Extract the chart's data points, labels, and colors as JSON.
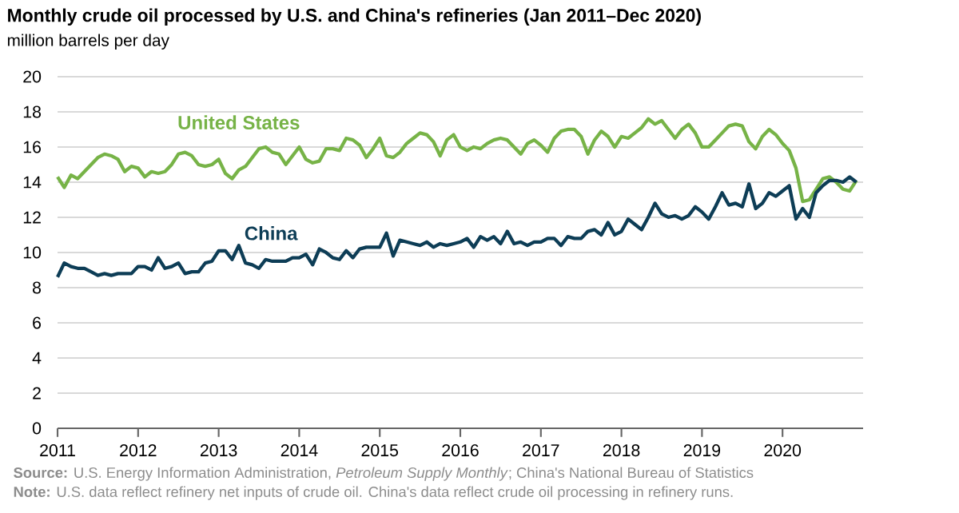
{
  "chart_data": {
    "type": "line",
    "title": "Monthly crude oil processed by U.S. and China's refineries (Jan 2011–Dec 2020)",
    "ylabel": "million barrels per day",
    "x": [
      "2011-01",
      "2011-02",
      "2011-03",
      "2011-04",
      "2011-05",
      "2011-06",
      "2011-07",
      "2011-08",
      "2011-09",
      "2011-10",
      "2011-11",
      "2011-12",
      "2012-01",
      "2012-02",
      "2012-03",
      "2012-04",
      "2012-05",
      "2012-06",
      "2012-07",
      "2012-08",
      "2012-09",
      "2012-10",
      "2012-11",
      "2012-12",
      "2013-01",
      "2013-02",
      "2013-03",
      "2013-04",
      "2013-05",
      "2013-06",
      "2013-07",
      "2013-08",
      "2013-09",
      "2013-10",
      "2013-11",
      "2013-12",
      "2014-01",
      "2014-02",
      "2014-03",
      "2014-04",
      "2014-05",
      "2014-06",
      "2014-07",
      "2014-08",
      "2014-09",
      "2014-10",
      "2014-11",
      "2014-12",
      "2015-01",
      "2015-02",
      "2015-03",
      "2015-04",
      "2015-05",
      "2015-06",
      "2015-07",
      "2015-08",
      "2015-09",
      "2015-10",
      "2015-11",
      "2015-12",
      "2016-01",
      "2016-02",
      "2016-03",
      "2016-04",
      "2016-05",
      "2016-06",
      "2016-07",
      "2016-08",
      "2016-09",
      "2016-10",
      "2016-11",
      "2016-12",
      "2017-01",
      "2017-02",
      "2017-03",
      "2017-04",
      "2017-05",
      "2017-06",
      "2017-07",
      "2017-08",
      "2017-09",
      "2017-10",
      "2017-11",
      "2017-12",
      "2018-01",
      "2018-02",
      "2018-03",
      "2018-04",
      "2018-05",
      "2018-06",
      "2018-07",
      "2018-08",
      "2018-09",
      "2018-10",
      "2018-11",
      "2018-12",
      "2019-01",
      "2019-02",
      "2019-03",
      "2019-04",
      "2019-05",
      "2019-06",
      "2019-07",
      "2019-08",
      "2019-09",
      "2019-10",
      "2019-11",
      "2019-12",
      "2020-01",
      "2020-02",
      "2020-03",
      "2020-04",
      "2020-05",
      "2020-06",
      "2020-07",
      "2020-08",
      "2020-09",
      "2020-10",
      "2020-11",
      "2020-12"
    ],
    "series": [
      {
        "name": "United States",
        "color": "#77b347",
        "values": [
          14.3,
          13.7,
          14.4,
          14.2,
          14.6,
          15.0,
          15.4,
          15.6,
          15.5,
          15.3,
          14.6,
          14.9,
          14.8,
          14.3,
          14.6,
          14.5,
          14.6,
          15.0,
          15.6,
          15.7,
          15.5,
          15.0,
          14.9,
          15.0,
          15.3,
          14.5,
          14.2,
          14.7,
          14.9,
          15.4,
          15.9,
          16.0,
          15.7,
          15.6,
          15.0,
          15.5,
          16.0,
          15.3,
          15.1,
          15.2,
          15.9,
          15.9,
          15.8,
          16.5,
          16.4,
          16.1,
          15.4,
          15.9,
          16.5,
          15.5,
          15.4,
          15.7,
          16.2,
          16.5,
          16.8,
          16.7,
          16.3,
          15.5,
          16.4,
          16.7,
          16.0,
          15.8,
          16.0,
          15.9,
          16.2,
          16.4,
          16.5,
          16.4,
          16.0,
          15.6,
          16.2,
          16.4,
          16.1,
          15.7,
          16.5,
          16.9,
          17.0,
          17.0,
          16.6,
          15.6,
          16.4,
          16.9,
          16.6,
          16.0,
          16.6,
          16.5,
          16.8,
          17.1,
          17.6,
          17.3,
          17.5,
          17.0,
          16.5,
          17.0,
          17.3,
          16.8,
          16.0,
          16.0,
          16.4,
          16.8,
          17.2,
          17.3,
          17.2,
          16.3,
          15.9,
          16.6,
          17.0,
          16.7,
          16.2,
          15.8,
          14.8,
          12.9,
          13.0,
          13.6,
          14.2,
          14.3,
          14.0,
          13.6,
          13.5,
          14.1
        ]
      },
      {
        "name": "China",
        "color": "#0d3d56",
        "values": [
          8.6,
          9.4,
          9.2,
          9.1,
          9.1,
          8.9,
          8.7,
          8.8,
          8.7,
          8.8,
          8.8,
          8.8,
          9.2,
          9.2,
          9.0,
          9.7,
          9.1,
          9.2,
          9.4,
          8.8,
          8.9,
          8.9,
          9.4,
          9.5,
          10.1,
          10.1,
          9.6,
          10.4,
          9.4,
          9.3,
          9.1,
          9.6,
          9.5,
          9.5,
          9.5,
          9.7,
          9.7,
          9.9,
          9.3,
          10.2,
          10.0,
          9.7,
          9.6,
          10.1,
          9.7,
          10.2,
          10.3,
          10.3,
          10.3,
          11.1,
          9.8,
          10.7,
          10.6,
          10.5,
          10.4,
          10.6,
          10.3,
          10.5,
          10.4,
          10.5,
          10.6,
          10.8,
          10.3,
          10.9,
          10.7,
          10.9,
          10.5,
          11.2,
          10.5,
          10.6,
          10.4,
          10.6,
          10.6,
          10.8,
          10.8,
          10.4,
          10.9,
          10.8,
          10.8,
          11.2,
          11.3,
          11.0,
          11.7,
          11.0,
          11.2,
          11.9,
          11.6,
          11.3,
          12.0,
          12.8,
          12.2,
          12.0,
          12.1,
          11.9,
          12.1,
          12.6,
          12.3,
          11.9,
          12.6,
          13.4,
          12.7,
          12.8,
          12.6,
          13.9,
          12.5,
          12.8,
          13.4,
          13.2,
          13.5,
          13.8,
          11.9,
          12.5,
          12.0,
          13.4,
          13.8,
          14.1,
          14.1,
          14.0,
          14.3,
          14.0
        ]
      }
    ],
    "xlim": [
      "2011",
      "2021"
    ],
    "xticks": [
      "2011",
      "2012",
      "2013",
      "2014",
      "2015",
      "2016",
      "2017",
      "2018",
      "2019",
      "2020"
    ],
    "ylim": [
      0,
      20
    ],
    "yticks": [
      0,
      2,
      4,
      6,
      8,
      10,
      12,
      14,
      16,
      18,
      20
    ],
    "grid": "y",
    "annotations": [
      "**Source:** U.S. Energy Information Administration, *Petroleum Supply Monthly*; China's National Bureau of Statistics",
      "**Note:** U.S. data reflect refinery net inputs of crude oil. China's data reflect crude oil processing in refinery runs."
    ]
  }
}
